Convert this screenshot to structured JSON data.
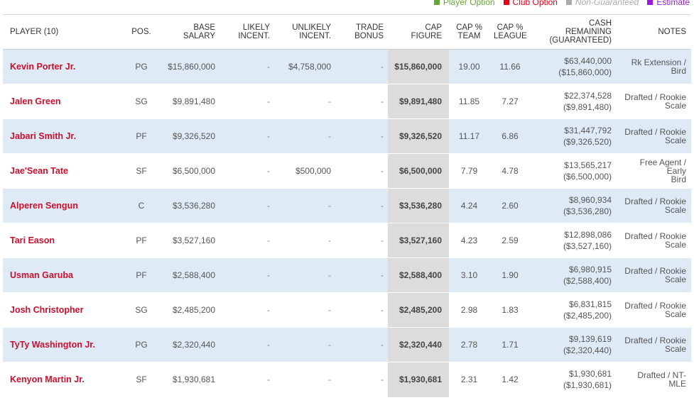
{
  "legend": [
    {
      "label": "Player Option",
      "color": "#66a638",
      "style": "normal"
    },
    {
      "label": "Club Option",
      "color": "#e4001b",
      "style": "normal"
    },
    {
      "label": "Non-Guaranteed",
      "color": "#aaaaaa",
      "style": "italic"
    },
    {
      "label": "Estimate",
      "color": "#9b19e0",
      "style": "normal"
    }
  ],
  "columns": {
    "player": "PLAYER (10)",
    "pos": "POS.",
    "base_salary": [
      "BASE",
      "SALARY"
    ],
    "likely": [
      "LIKELY",
      "INCENT."
    ],
    "unlikely": [
      "UNLIKELY",
      "INCENT."
    ],
    "trade": [
      "TRADE",
      "BONUS"
    ],
    "cap_figure": [
      "CAP",
      "FIGURE"
    ],
    "cap_team": [
      "CAP %",
      "TEAM"
    ],
    "cap_league": [
      "CAP %",
      "LEAGUE"
    ],
    "cash": [
      "CASH",
      "REMAINING",
      "(GUARANTEED)"
    ],
    "notes": "NOTES"
  },
  "rows": [
    {
      "player": "Kevin Porter Jr.",
      "pos": "PG",
      "base": "$15,860,000",
      "likely": "-",
      "unlikely": "$4,758,000",
      "trade": "-",
      "cap": "$15,860,000",
      "team": "19.00",
      "league": "11.66",
      "cash": "$63,440,000",
      "cash_g": "($15,860,000)",
      "notes": [
        "Rk Extension /",
        "Bird"
      ]
    },
    {
      "player": "Jalen Green",
      "pos": "SG",
      "base": "$9,891,480",
      "likely": "-",
      "unlikely": "-",
      "trade": "-",
      "cap": "$9,891,480",
      "team": "11.85",
      "league": "7.27",
      "cash": "$22,374,528",
      "cash_g": "($9,891,480)",
      "notes": [
        "Drafted / Rookie",
        "Scale"
      ]
    },
    {
      "player": "Jabari Smith Jr.",
      "pos": "PF",
      "base": "$9,326,520",
      "likely": "-",
      "unlikely": "-",
      "trade": "-",
      "cap": "$9,326,520",
      "team": "11.17",
      "league": "6.86",
      "cash": "$31,447,792",
      "cash_g": "($9,326,520)",
      "notes": [
        "Drafted / Rookie",
        "Scale"
      ]
    },
    {
      "player": "Jae'Sean Tate",
      "pos": "SF",
      "base": "$6,500,000",
      "likely": "-",
      "unlikely": "$500,000",
      "trade": "-",
      "cap": "$6,500,000",
      "team": "7.79",
      "league": "4.78",
      "cash": "$13,565,217",
      "cash_g": "($6,500,000)",
      "notes": [
        "Free Agent / Early",
        "Bird"
      ]
    },
    {
      "player": "Alperen Sengun",
      "pos": "C",
      "base": "$3,536,280",
      "likely": "-",
      "unlikely": "-",
      "trade": "-",
      "cap": "$3,536,280",
      "team": "4.24",
      "league": "2.60",
      "cash": "$8,960,934",
      "cash_g": "($3,536,280)",
      "notes": [
        "Drafted / Rookie",
        "Scale"
      ]
    },
    {
      "player": "Tari Eason",
      "pos": "PF",
      "base": "$3,527,160",
      "likely": "-",
      "unlikely": "-",
      "trade": "-",
      "cap": "$3,527,160",
      "team": "4.23",
      "league": "2.59",
      "cash": "$12,898,086",
      "cash_g": "($3,527,160)",
      "notes": [
        "Drafted / Rookie",
        "Scale"
      ]
    },
    {
      "player": "Usman Garuba",
      "pos": "PF",
      "base": "$2,588,400",
      "likely": "-",
      "unlikely": "-",
      "trade": "-",
      "cap": "$2,588,400",
      "team": "3.10",
      "league": "1.90",
      "cash": "$6,980,915",
      "cash_g": "($2,588,400)",
      "notes": [
        "Drafted / Rookie",
        "Scale"
      ]
    },
    {
      "player": "Josh Christopher",
      "pos": "SG",
      "base": "$2,485,200",
      "likely": "-",
      "unlikely": "-",
      "trade": "-",
      "cap": "$2,485,200",
      "team": "2.98",
      "league": "1.83",
      "cash": "$6,831,815",
      "cash_g": "($2,485,200)",
      "notes": [
        "Drafted / Rookie",
        "Scale"
      ]
    },
    {
      "player": "TyTy Washington Jr.",
      "pos": "PG",
      "base": "$2,320,440",
      "likely": "-",
      "unlikely": "-",
      "trade": "-",
      "cap": "$2,320,440",
      "team": "2.78",
      "league": "1.71",
      "cash": "$9,139,619",
      "cash_g": "($2,320,440)",
      "notes": [
        "Drafted / Rookie",
        "Scale"
      ]
    },
    {
      "player": "Kenyon Martin Jr.",
      "pos": "SF",
      "base": "$1,930,681",
      "likely": "-",
      "unlikely": "-",
      "trade": "-",
      "cap": "$1,930,681",
      "team": "2.31",
      "league": "1.42",
      "cash": "$1,930,681",
      "cash_g": "($1,930,681)",
      "notes": [
        "Drafted / NT-MLE"
      ]
    }
  ]
}
